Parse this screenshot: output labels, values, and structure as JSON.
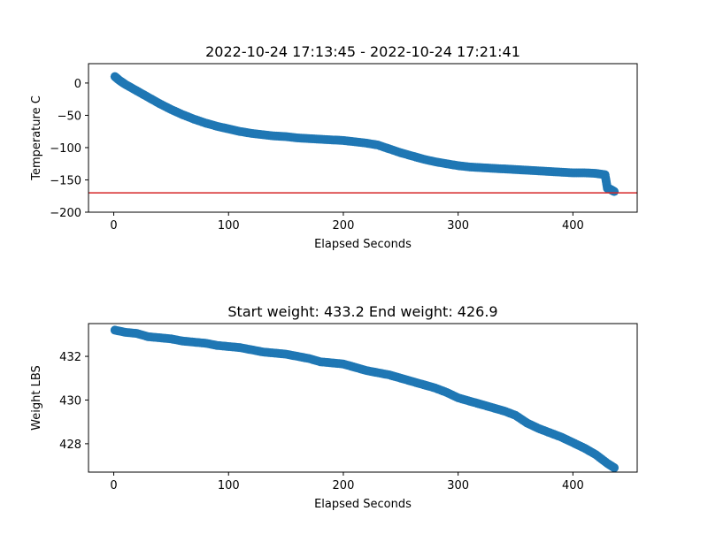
{
  "chart_data": [
    {
      "type": "scatter",
      "title": "2022-10-24 17:13:45 - 2022-10-24 17:21:41",
      "xlabel": "Elapsed Seconds",
      "ylabel": "Temperature C",
      "xlim": [
        -22,
        456
      ],
      "ylim": [
        -200,
        30
      ],
      "xticks": [
        0,
        100,
        200,
        300,
        400
      ],
      "xtick_labels": [
        "0",
        "100",
        "200",
        "300",
        "400"
      ],
      "yticks": [
        0,
        -50,
        -100,
        -150,
        -200
      ],
      "ytick_labels": [
        "0",
        "−50",
        "−100",
        "−150",
        "−200"
      ],
      "grid": false,
      "marker_color": "#1f77b4",
      "hline": {
        "y": -170,
        "color": "#d62728"
      },
      "points": [
        [
          1,
          10
        ],
        [
          5,
          4
        ],
        [
          10,
          -2
        ],
        [
          20,
          -12
        ],
        [
          30,
          -22
        ],
        [
          40,
          -32
        ],
        [
          50,
          -41
        ],
        [
          60,
          -49
        ],
        [
          70,
          -56
        ],
        [
          80,
          -62
        ],
        [
          90,
          -67
        ],
        [
          100,
          -71
        ],
        [
          110,
          -75
        ],
        [
          120,
          -78
        ],
        [
          130,
          -80
        ],
        [
          140,
          -82
        ],
        [
          150,
          -83
        ],
        [
          160,
          -85
        ],
        [
          170,
          -86
        ],
        [
          180,
          -87
        ],
        [
          190,
          -88
        ],
        [
          200,
          -89
        ],
        [
          210,
          -91
        ],
        [
          220,
          -93
        ],
        [
          230,
          -96
        ],
        [
          240,
          -102
        ],
        [
          250,
          -108
        ],
        [
          260,
          -113
        ],
        [
          270,
          -118
        ],
        [
          280,
          -122
        ],
        [
          290,
          -125
        ],
        [
          300,
          -128
        ],
        [
          310,
          -130
        ],
        [
          320,
          -131
        ],
        [
          330,
          -132
        ],
        [
          340,
          -133
        ],
        [
          350,
          -134
        ],
        [
          360,
          -135
        ],
        [
          370,
          -136
        ],
        [
          380,
          -137
        ],
        [
          390,
          -138
        ],
        [
          400,
          -139
        ],
        [
          410,
          -139
        ],
        [
          420,
          -140
        ],
        [
          428,
          -142
        ],
        [
          430,
          -163
        ],
        [
          432,
          -164
        ],
        [
          434,
          -166
        ],
        [
          436,
          -168
        ]
      ]
    },
    {
      "type": "scatter",
      "title": "Start weight: 433.2 End weight: 426.9",
      "xlabel": "Elapsed Seconds",
      "ylabel": "Weight LBS",
      "xlim": [
        -22,
        456
      ],
      "ylim": [
        426.7,
        433.5
      ],
      "xticks": [
        0,
        100,
        200,
        300,
        400
      ],
      "xtick_labels": [
        "0",
        "100",
        "200",
        "300",
        "400"
      ],
      "yticks": [
        428,
        430,
        432
      ],
      "ytick_labels": [
        "428",
        "430",
        "432"
      ],
      "grid": false,
      "marker_color": "#1f77b4",
      "points": [
        [
          1,
          433.2
        ],
        [
          10,
          433.1
        ],
        [
          20,
          433.05
        ],
        [
          30,
          432.9
        ],
        [
          40,
          432.85
        ],
        [
          50,
          432.8
        ],
        [
          60,
          432.7
        ],
        [
          70,
          432.65
        ],
        [
          80,
          432.6
        ],
        [
          90,
          432.5
        ],
        [
          100,
          432.45
        ],
        [
          110,
          432.4
        ],
        [
          120,
          432.3
        ],
        [
          130,
          432.2
        ],
        [
          140,
          432.15
        ],
        [
          150,
          432.1
        ],
        [
          160,
          432.0
        ],
        [
          170,
          431.9
        ],
        [
          180,
          431.75
        ],
        [
          190,
          431.7
        ],
        [
          200,
          431.65
        ],
        [
          210,
          431.5
        ],
        [
          220,
          431.35
        ],
        [
          230,
          431.25
        ],
        [
          240,
          431.15
        ],
        [
          250,
          431.0
        ],
        [
          260,
          430.85
        ],
        [
          270,
          430.7
        ],
        [
          280,
          430.55
        ],
        [
          290,
          430.35
        ],
        [
          300,
          430.1
        ],
        [
          310,
          429.95
        ],
        [
          320,
          429.8
        ],
        [
          330,
          429.65
        ],
        [
          340,
          429.5
        ],
        [
          350,
          429.3
        ],
        [
          360,
          428.95
        ],
        [
          370,
          428.7
        ],
        [
          380,
          428.5
        ],
        [
          390,
          428.3
        ],
        [
          400,
          428.05
        ],
        [
          410,
          427.8
        ],
        [
          420,
          427.5
        ],
        [
          430,
          427.1
        ],
        [
          436,
          426.9
        ]
      ]
    }
  ]
}
